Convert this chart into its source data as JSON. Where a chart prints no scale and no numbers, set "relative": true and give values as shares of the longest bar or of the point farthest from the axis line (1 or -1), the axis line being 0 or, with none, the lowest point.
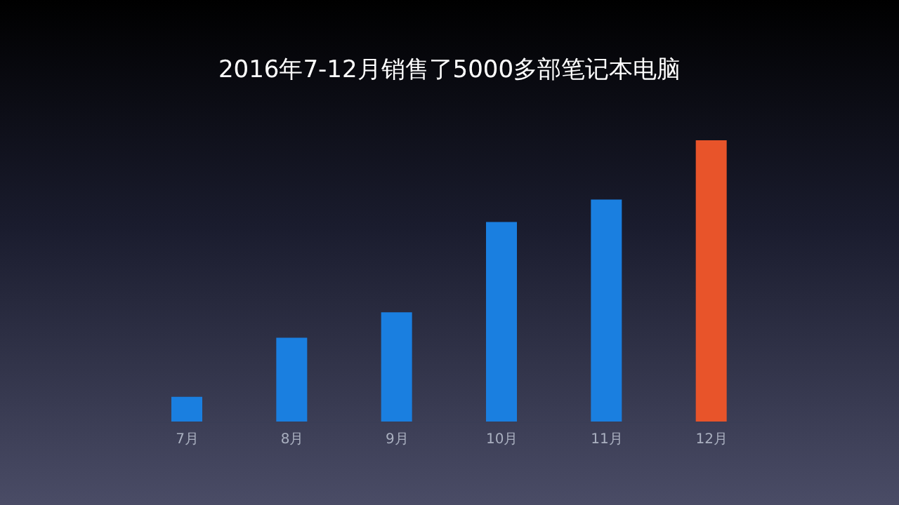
{
  "chart_data": {
    "type": "bar",
    "title": "2016年7-12月销售了5000多部笔记本电脑",
    "relative": true,
    "categories": [
      "7月",
      "8月",
      "9月",
      "10月",
      "11月",
      "12月"
    ],
    "values": [
      0.09,
      0.3,
      0.39,
      0.71,
      0.79,
      1
    ],
    "colors": [
      "#1a7fe0",
      "#1a7fe0",
      "#1a7fe0",
      "#1a7fe0",
      "#1a7fe0",
      "#e8542a"
    ],
    "grid": false,
    "legend": false
  }
}
